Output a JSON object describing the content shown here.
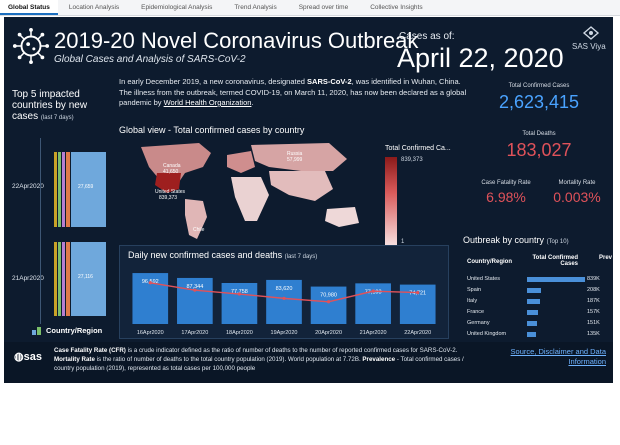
{
  "tabs": [
    {
      "label": "Global Status",
      "active": true
    },
    {
      "label": "Location Analysis",
      "active": false
    },
    {
      "label": "Epidemiological Analysis",
      "active": false
    },
    {
      "label": "Trend Analysis",
      "active": false
    },
    {
      "label": "Spread over time",
      "active": false
    },
    {
      "label": "Collective Insights",
      "active": false
    }
  ],
  "header": {
    "title": "2019-20 Novel Coronavirus Outbreak",
    "subtitle": "Global Cases and Analysis of SARS-CoV-2",
    "as_of_label": "Cases as of:",
    "as_of_date": "April 22, 2020",
    "brand": "SAS Viya"
  },
  "intro": {
    "p1": "In early December 2019, a new coronavirus, designated ",
    "virus": "SARS-CoV-2",
    "p2": ", was identified in Wuhan, China. The illness from the outbreak, termed COVID-19, on March 11, 2020, has now been declared as a global pandemic by ",
    "who": "World Health Organization",
    "p3": "."
  },
  "top5": {
    "title": "Top 5 impacted countries by new cases",
    "subtitle": "(last 7 days)",
    "rows": [
      {
        "date": "22Apr2020",
        "value": "27,659"
      },
      {
        "date": "21Apr2020",
        "value": "27,116"
      }
    ],
    "footer_label": "Country/Region",
    "colors": [
      "#c9a227",
      "#7bbf6a",
      "#b77fd1",
      "#e07b4a",
      "#6fa8dc"
    ]
  },
  "metrics": {
    "total_confirmed": {
      "label": "Total Confirmed Cases",
      "value": "2,623,415",
      "color": "#4aa3ff"
    },
    "total_deaths": {
      "label": "Total Deaths",
      "value": "183,027",
      "color": "#e0525a"
    },
    "cfr": {
      "label": "Case Fatality Rate",
      "value": "6.98%",
      "color": "#e0525a"
    },
    "mortality": {
      "label": "Mortality Rate",
      "value": "0.003%",
      "color": "#e0525a"
    }
  },
  "global_view": {
    "title": "Global view - Total confirmed cases by country",
    "legend_title": "Total Confirmed Ca...",
    "legend_max": "839,373",
    "legend_min": "1",
    "map_labels": [
      {
        "name": "Canada",
        "value": "41,650"
      },
      {
        "name": "United States",
        "value": "839,373"
      },
      {
        "name": "Russia",
        "value": "57,999"
      },
      {
        "name": "Chile",
        "value": ""
      }
    ]
  },
  "daily": {
    "title": "Daily new confirmed cases and deaths",
    "subtitle": "(last 7 days)"
  },
  "chart_data": {
    "type": "bar",
    "categories": [
      "16Apr2020",
      "17Apr2020",
      "18Apr2020",
      "19Apr2020",
      "20Apr2020",
      "21Apr2020",
      "22Apr2020"
    ],
    "series": [
      {
        "values": [
          96592,
          87344,
          77758,
          83620,
          70980,
          77103,
          74721
        ]
      },
      {
        "values": [
          8528,
          7000,
          6200,
          5300,
          4600,
          6800,
          6500
        ]
      }
    ],
    "bar_labels": [
      "96,592",
      "87,344",
      "77,758",
      "83,620",
      "70,980",
      "77,103",
      "74,721"
    ],
    "ylim": [
      0,
      110000
    ]
  },
  "outbreak": {
    "title": "Outbreak by country",
    "subtitle": "(Top 10)",
    "col_country": "Country/Region",
    "col_confirmed": "Total Confirmed Cases",
    "col_prev": "Prev",
    "rows": [
      {
        "country": "United States",
        "value": "839K",
        "frac": 1.0
      },
      {
        "country": "Spain",
        "value": "208K",
        "frac": 0.248
      },
      {
        "country": "Italy",
        "value": "187K",
        "frac": 0.223
      },
      {
        "country": "France",
        "value": "157K",
        "frac": 0.187
      },
      {
        "country": "Germany",
        "value": "151K",
        "frac": 0.18
      },
      {
        "country": "United Kingdom",
        "value": "135K",
        "frac": 0.161
      }
    ]
  },
  "footer": {
    "logo": "sas",
    "t1": "Case Fatality Rate (CFR)",
    "t2": " is a crude indicator defined as the ratio of number of deaths to the number of reported confirmed cases for SARS-CoV-2. ",
    "t3": "Mortality Rate",
    "t4": " is the ratio of number of deaths to the total country population (2019). World population at 7.72B. ",
    "t5": "Prevalence",
    "t6": " - Total confirmed cases / country population (2019), represented as total cases per 100,000 people",
    "link": "Source, Disclaimer and Data Information"
  }
}
